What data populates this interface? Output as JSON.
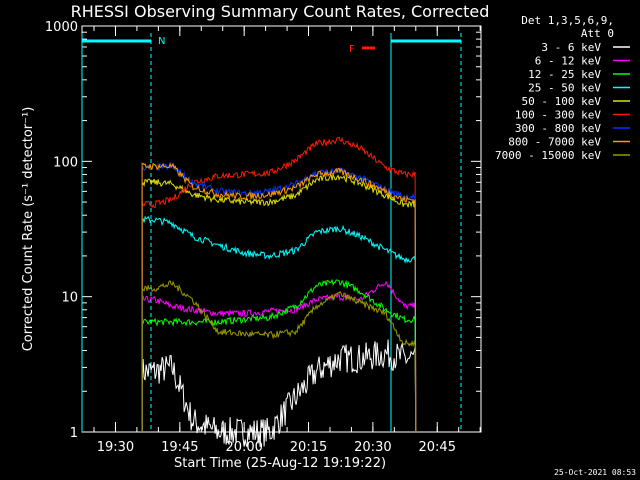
{
  "chart_data": {
    "type": "line",
    "title": "RHESSI Observing Summary Count Rates, Corrected",
    "xlabel": "Start Time (25-Aug-12 19:19:22)",
    "ylabel": "Corrected Count Rate (s⁻¹ detector⁻¹)",
    "yscale": "log",
    "ylim": [
      1,
      1000
    ],
    "xlim_minutes": [
      19.37,
      20.92
    ],
    "x_tick_labels": [
      "19:30",
      "19:45",
      "20:00",
      "20:15",
      "20:30",
      "20:45"
    ],
    "x_tick_values_hours": [
      19.5,
      19.75,
      20.0,
      20.25,
      20.5,
      20.75
    ],
    "y_tick_labels": [
      "1",
      "10",
      "100",
      "1000"
    ],
    "y_tick_values": [
      1,
      10,
      100,
      1000
    ],
    "legend_header": [
      "Det 1,3,5,6,9,",
      "Att 0"
    ],
    "legend_placement": "right",
    "x": [
      19.65,
      19.72,
      19.8,
      19.9,
      20.0,
      20.1,
      20.2,
      20.28,
      20.37,
      20.45,
      20.55,
      20.62
    ],
    "series": [
      {
        "name": "3 - 6 keV",
        "color": "#ffffff",
        "values": [
          2.8,
          3.0,
          1.2,
          1.0,
          1.0,
          1.0,
          1.8,
          2.8,
          3.5,
          3.5,
          3.8,
          3.5
        ]
      },
      {
        "name": "6 - 12 keV",
        "color": "#ff00ff",
        "values": [
          9.5,
          8.5,
          8.0,
          7.5,
          7.5,
          7.8,
          8.0,
          9.5,
          10.0,
          9.5,
          13.0,
          8.5
        ]
      },
      {
        "name": "12 - 25 keV",
        "color": "#00ff00",
        "values": [
          6.5,
          6.5,
          6.5,
          6.5,
          6.8,
          7.0,
          8.5,
          12.0,
          13.0,
          11.0,
          8.0,
          6.8
        ]
      },
      {
        "name": "25 - 50 keV",
        "color": "#00ffff",
        "values": [
          37,
          35,
          28,
          24,
          21,
          20,
          22,
          30,
          32,
          28,
          22,
          19
        ]
      },
      {
        "name": "50 - 100 keV",
        "color": "#e0e000",
        "values": [
          70,
          68,
          57,
          52,
          50,
          50,
          56,
          73,
          78,
          69,
          56,
          48
        ]
      },
      {
        "name": "100 - 300 keV",
        "color": "#ff1a00",
        "values": [
          48,
          52,
          70,
          78,
          80,
          82,
          102,
          135,
          145,
          125,
          90,
          80
        ]
      },
      {
        "name": "300 - 800 keV",
        "color": "#0033ff",
        "values": [
          90,
          92,
          70,
          60,
          58,
          60,
          68,
          82,
          85,
          76,
          62,
          55
        ]
      },
      {
        "name": "800 - 7000 keV",
        "color": "#ff9900",
        "values": [
          92,
          92,
          65,
          57,
          55,
          57,
          64,
          80,
          84,
          74,
          60,
          52
        ]
      },
      {
        "name": "7000 - 15000 keV",
        "color": "#999900",
        "values": [
          11.5,
          12.5,
          9.5,
          5.5,
          5.3,
          5.2,
          5.5,
          8.5,
          10.5,
          9.0,
          7.5,
          4.5
        ]
      }
    ],
    "annotations": [
      {
        "label": "N",
        "color": "#00ffff"
      },
      {
        "label": "F",
        "color": "#ff1a00"
      }
    ]
  },
  "footer_date": "25-Oct-2021 08:53",
  "colors": {
    "background": "#000000",
    "axes": "#ffffff",
    "night_bar": "#00ffff",
    "flare_flag": "#ff1a00"
  }
}
